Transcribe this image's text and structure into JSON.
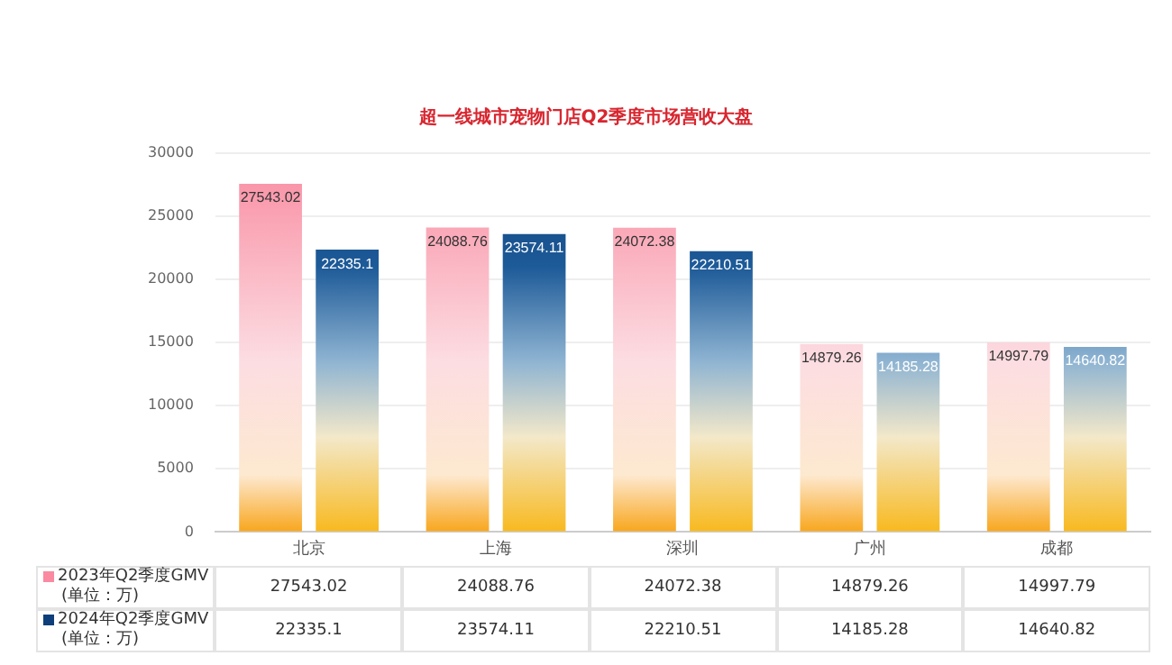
{
  "chart_data": {
    "type": "bar",
    "title": "超一线城市宠物门店Q2季度市场营收大盘",
    "categories": [
      "北京",
      "上海",
      "深圳",
      "广州",
      "成都"
    ],
    "series": [
      {
        "name": "2023年Q2季度GMV\n(单位：万)",
        "color": "#f98aa0",
        "values": [
          27543.02,
          24088.76,
          24072.38,
          14879.26,
          14997.79
        ],
        "value_labels": [
          "27543.02",
          "24088.76",
          "24072.38",
          "14879.26",
          "14997.79"
        ]
      },
      {
        "name": "2024年Q2季度GMV\n(单位：万)",
        "color": "#0f3f7a",
        "values": [
          22335.1,
          23574.11,
          22210.51,
          14185.28,
          14640.82
        ],
        "value_labels": [
          "22335.1",
          "23574.11",
          "22210.51",
          "14185.28",
          "14640.82"
        ]
      }
    ],
    "annotations": [
      "27543.02",
      "24088.76",
      "24072.38",
      "14879.26",
      "14997.79",
      "22335.1",
      "23574.11",
      "22210.51",
      "14185.28",
      "14640.82"
    ],
    "ylim": [
      0,
      30000
    ],
    "yticks": [
      0,
      5000,
      10000,
      15000,
      20000,
      25000,
      30000
    ],
    "grid": "y",
    "legend": "bottom left"
  }
}
